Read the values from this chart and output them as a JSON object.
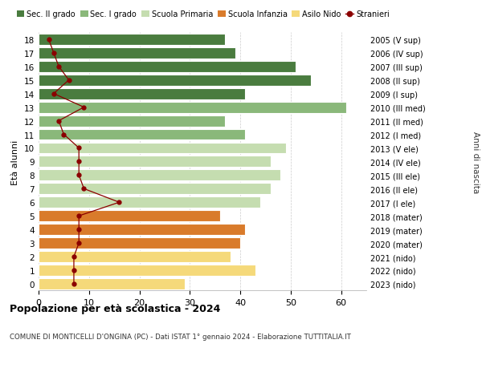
{
  "ages": [
    18,
    17,
    16,
    15,
    14,
    13,
    12,
    11,
    10,
    9,
    8,
    7,
    6,
    5,
    4,
    3,
    2,
    1,
    0
  ],
  "bar_values": [
    37,
    39,
    51,
    54,
    41,
    61,
    37,
    41,
    49,
    46,
    48,
    46,
    44,
    36,
    41,
    40,
    38,
    43,
    29
  ],
  "stranieri_values": [
    2,
    3,
    4,
    6,
    3,
    9,
    4,
    5,
    8,
    8,
    8,
    9,
    16,
    8,
    8,
    8,
    7,
    7,
    7
  ],
  "right_labels": [
    "2005 (V sup)",
    "2006 (IV sup)",
    "2007 (III sup)",
    "2008 (II sup)",
    "2009 (I sup)",
    "2010 (III med)",
    "2011 (II med)",
    "2012 (I med)",
    "2013 (V ele)",
    "2014 (IV ele)",
    "2015 (III ele)",
    "2016 (II ele)",
    "2017 (I ele)",
    "2018 (mater)",
    "2019 (mater)",
    "2020 (mater)",
    "2021 (nido)",
    "2022 (nido)",
    "2023 (nido)"
  ],
  "bar_colors": [
    "#4a7c3f",
    "#4a7c3f",
    "#4a7c3f",
    "#4a7c3f",
    "#4a7c3f",
    "#8ab87a",
    "#8ab87a",
    "#8ab87a",
    "#c5ddb0",
    "#c5ddb0",
    "#c5ddb0",
    "#c5ddb0",
    "#c5ddb0",
    "#d97b2b",
    "#d97b2b",
    "#d97b2b",
    "#f5d97a",
    "#f5d97a",
    "#f5d97a"
  ],
  "legend_labels": [
    "Sec. II grado",
    "Sec. I grado",
    "Scuola Primaria",
    "Scuola Infanzia",
    "Asilo Nido",
    "Stranieri"
  ],
  "legend_colors": [
    "#4a7c3f",
    "#8ab87a",
    "#c5ddb0",
    "#d97b2b",
    "#f5d97a",
    "#8b0000"
  ],
  "title": "Popolazione per età scolastica - 2024",
  "subtitle": "COMUNE DI MONTICELLI D'ONGINA (PC) - Dati ISTAT 1° gennaio 2024 - Elaborazione TUTTITALIA.IT",
  "ylabel": "Età alunni",
  "right_ylabel": "Anni di nascita",
  "xlim": [
    0,
    65
  ],
  "bg_color": "#ffffff",
  "grid_color": "#cccccc",
  "stranieri_color": "#8b0000",
  "stranieri_line_color": "#8b0000"
}
